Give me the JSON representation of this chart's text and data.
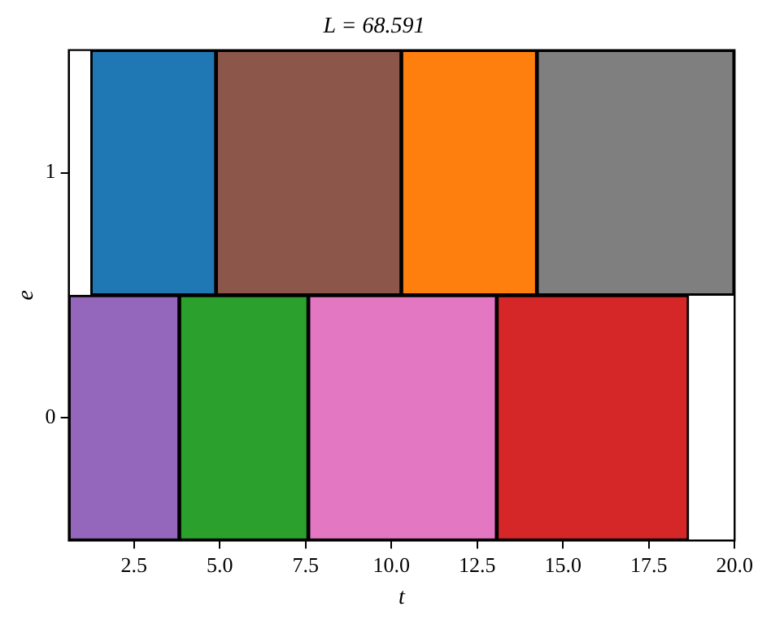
{
  "chart_data": {
    "type": "bar",
    "orientation": "horizontal",
    "title": "L = 68.591",
    "xlabel": "t",
    "ylabel": "e",
    "categories": [
      "1",
      "0"
    ],
    "xlim": [
      0.6,
      20
    ],
    "xticks": [
      2.5,
      {
        "value": 5,
        "label": "5.0"
      },
      7.5,
      {
        "value": 10,
        "label": "10.0"
      },
      12.5,
      {
        "value": 15,
        "label": "15.0"
      },
      17.5,
      {
        "value": 20,
        "label": "20.0"
      }
    ],
    "grid": false,
    "legend": false,
    "series": [
      {
        "color": "#1f77b4",
        "values": [
          3.65,
          null
        ],
        "base": [
          1.24,
          null
        ]
      },
      {
        "color": "#8c564b",
        "values": [
          5.4,
          null
        ],
        "base": [
          4.89,
          null
        ]
      },
      {
        "color": "#ff7f0e",
        "values": [
          3.95,
          null
        ],
        "base": [
          10.29,
          null
        ]
      },
      {
        "color": "#7f7f7f",
        "values": [
          5.75,
          null
        ],
        "base": [
          14.24,
          null
        ]
      },
      {
        "color": "#9467bd",
        "values": [
          null,
          3.22
        ],
        "base": [
          null,
          0.6
        ]
      },
      {
        "color": "#2ca02c",
        "values": [
          null,
          3.76
        ],
        "base": [
          null,
          3.82
        ]
      },
      {
        "color": "#e377c2",
        "values": [
          null,
          5.49
        ],
        "base": [
          null,
          7.58
        ]
      },
      {
        "color": "#d62728",
        "values": [
          null,
          5.59
        ],
        "base": [
          null,
          13.07
        ]
      }
    ]
  }
}
